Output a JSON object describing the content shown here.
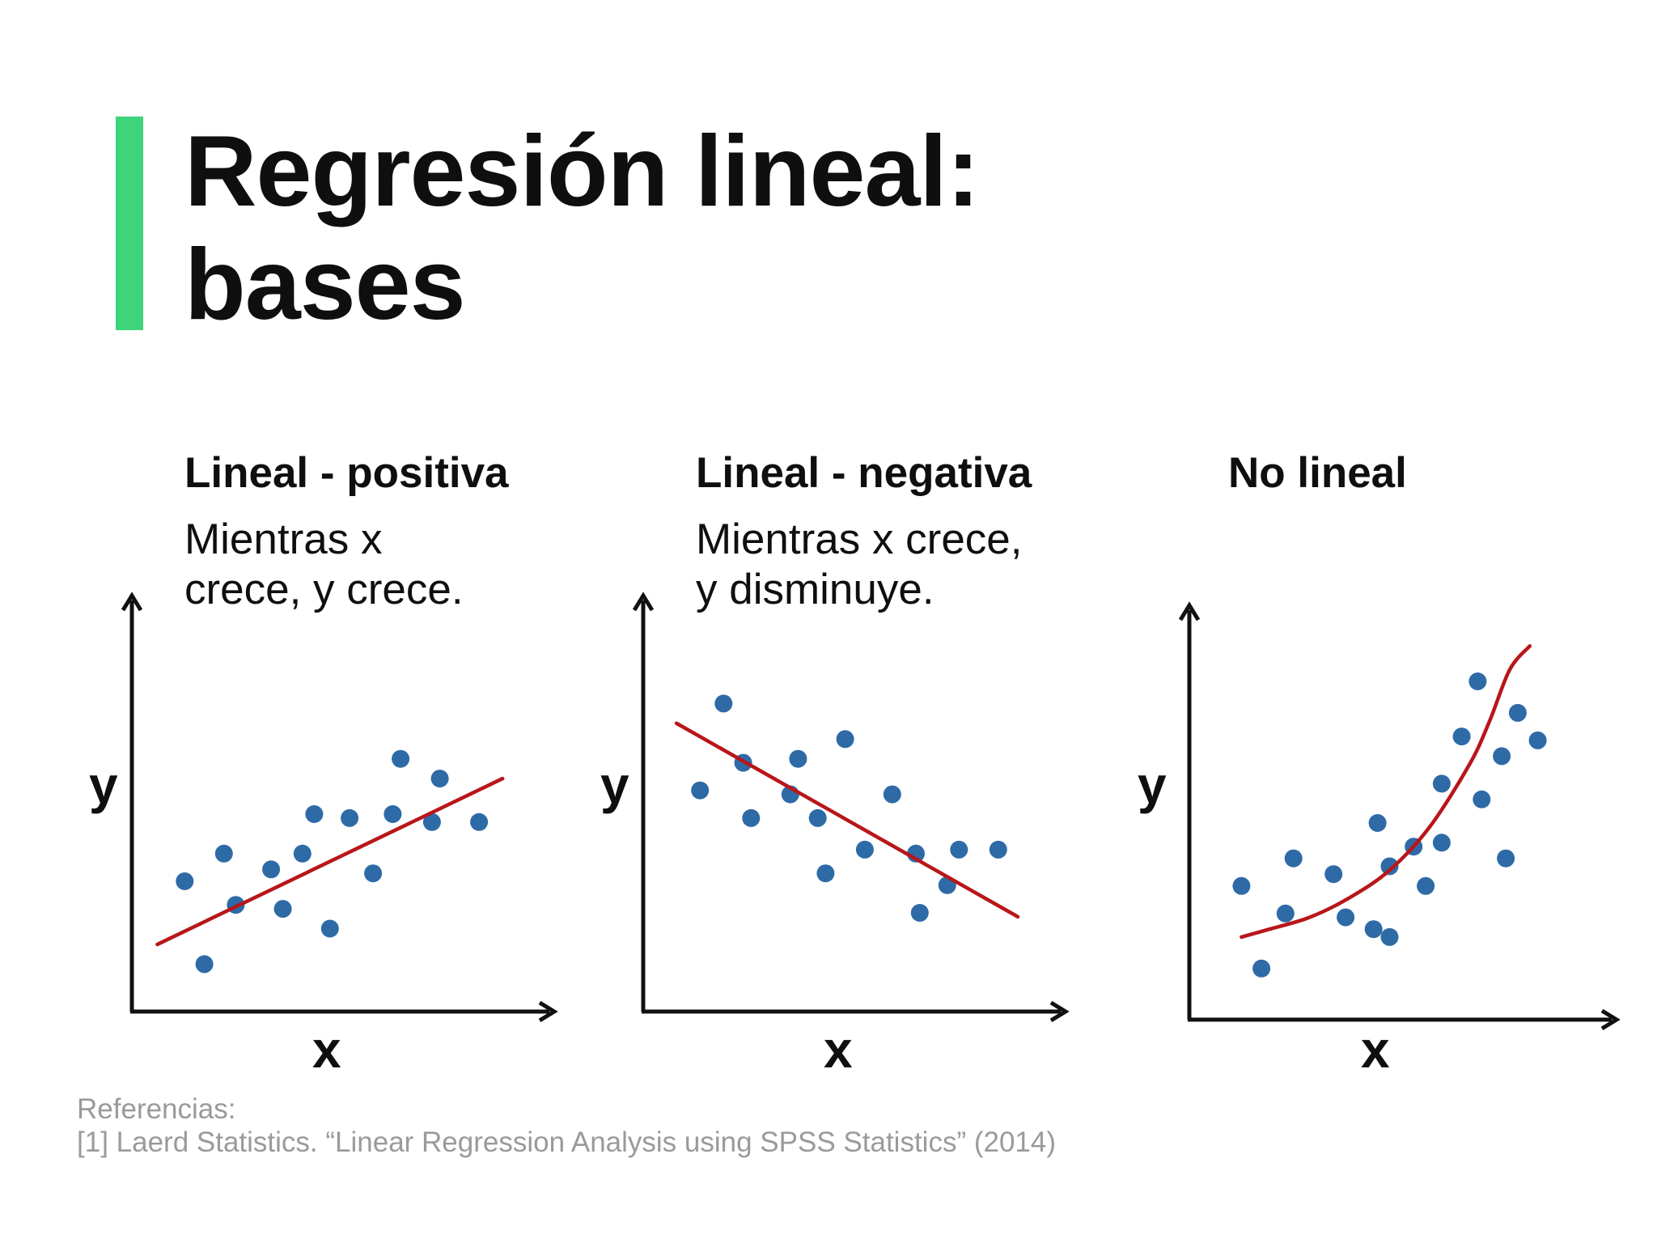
{
  "title": {
    "line1": "Regresión lineal:",
    "line2": "bases"
  },
  "colors": {
    "accent": "#3ed47a",
    "axis": "#111111",
    "points": "#2e6aa6",
    "fit_line": "#b8161a",
    "reference_text": "#9a9a9a"
  },
  "panels": [
    {
      "heading": "Lineal - positiva",
      "caption_line1": "Mientras x",
      "caption_line2": "crece, y crece.",
      "ylabel": "y",
      "xlabel": "x"
    },
    {
      "heading": "Lineal - negativa",
      "caption_line1": "Mientras x crece,",
      "caption_line2": "y disminuye.",
      "ylabel": "y",
      "xlabel": "x"
    },
    {
      "heading": "No lineal",
      "caption_line1": "",
      "caption_line2": "",
      "ylabel": "y",
      "xlabel": "x"
    }
  ],
  "references": {
    "label": "Referencias:",
    "item1": "[1]  Laerd Statistics. “Linear Regression Analysis using SPSS Statistics” (2014)"
  },
  "chart_data": [
    {
      "type": "scatter",
      "title": "Lineal - positiva",
      "xlabel": "x",
      "ylabel": "y",
      "xlim": [
        0,
        100
      ],
      "ylim": [
        0,
        100
      ],
      "axis_ticks": false,
      "grid": false,
      "points": [
        [
          11,
          33
        ],
        [
          16,
          12
        ],
        [
          21,
          40
        ],
        [
          24,
          27
        ],
        [
          33,
          36
        ],
        [
          36,
          26
        ],
        [
          41,
          40
        ],
        [
          44,
          50
        ],
        [
          48,
          21
        ],
        [
          53,
          49
        ],
        [
          59,
          35
        ],
        [
          64,
          50
        ],
        [
          66,
          64
        ],
        [
          74,
          48
        ],
        [
          76,
          59
        ],
        [
          86,
          48
        ]
      ],
      "trend": {
        "kind": "linear",
        "x": [
          4,
          92
        ],
        "y": [
          17,
          59
        ]
      }
    },
    {
      "type": "scatter",
      "title": "Lineal - negativa",
      "xlabel": "x",
      "ylabel": "y",
      "xlim": [
        0,
        100
      ],
      "ylim": [
        0,
        100
      ],
      "axis_ticks": false,
      "grid": false,
      "points": [
        [
          12,
          56
        ],
        [
          18,
          78
        ],
        [
          23,
          63
        ],
        [
          25,
          49
        ],
        [
          35,
          55
        ],
        [
          37,
          64
        ],
        [
          42,
          49
        ],
        [
          44,
          35
        ],
        [
          49,
          69
        ],
        [
          54,
          41
        ],
        [
          61,
          55
        ],
        [
          67,
          40
        ],
        [
          68,
          25
        ],
        [
          75,
          32
        ],
        [
          78,
          41
        ],
        [
          88,
          41
        ]
      ],
      "trend": {
        "kind": "linear",
        "x": [
          6,
          93
        ],
        "y": [
          73,
          24
        ]
      }
    },
    {
      "type": "scatter",
      "title": "No lineal",
      "xlabel": "x",
      "ylabel": "y",
      "xlim": [
        0,
        100
      ],
      "ylim": [
        0,
        100
      ],
      "axis_ticks": false,
      "grid": false,
      "points": [
        [
          13,
          34
        ],
        [
          18,
          13
        ],
        [
          24,
          27
        ],
        [
          26,
          41
        ],
        [
          36,
          37
        ],
        [
          39,
          26
        ],
        [
          46,
          23
        ],
        [
          47,
          50
        ],
        [
          50,
          39
        ],
        [
          50,
          21
        ],
        [
          56,
          44
        ],
        [
          59,
          34
        ],
        [
          63,
          45
        ],
        [
          63,
          60
        ],
        [
          68,
          72
        ],
        [
          72,
          86
        ],
        [
          73,
          56
        ],
        [
          78,
          67
        ],
        [
          79,
          41
        ],
        [
          82,
          78
        ],
        [
          87,
          71
        ]
      ],
      "trend": {
        "kind": "curve",
        "x": [
          13,
          20,
          30,
          40,
          50,
          60,
          70,
          75,
          80,
          85
        ],
        "y": [
          21,
          23,
          26,
          31,
          38,
          49,
          65,
          76,
          89,
          95
        ]
      }
    }
  ]
}
